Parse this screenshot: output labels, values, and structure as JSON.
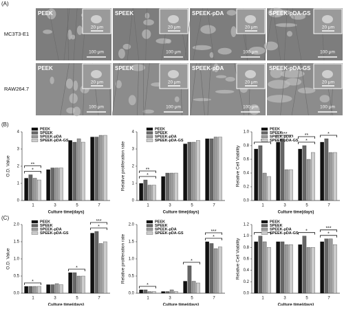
{
  "panels": {
    "a": "(A)",
    "b": "(B)",
    "c": "(C)"
  },
  "sem": {
    "rows": [
      "MC3T3-E1",
      "RAW264.7"
    ],
    "columns": [
      "PEEK",
      "SPEEK",
      "SPEEK-pDA",
      "SPEEK-pDA-GS"
    ],
    "inset_scale": "20 μm",
    "scale": "100 μm"
  },
  "chart_data": [
    {
      "type": "bar",
      "ylabel": "O.D. Value",
      "xlabel": "Culture time(days)",
      "categories": [
        "1",
        "3",
        "5",
        "7"
      ],
      "ylim": [
        0,
        4
      ],
      "yticks": [
        0,
        1,
        2,
        3,
        4
      ],
      "series": [
        {
          "name": "PEEK",
          "color": "#111111",
          "values": [
            1.3,
            1.8,
            3.5,
            3.7
          ]
        },
        {
          "name": "SPEEK",
          "color": "#666666",
          "values": [
            1.5,
            1.9,
            3.4,
            3.7
          ]
        },
        {
          "name": "SPEEK-pDA",
          "color": "#9a9a9a",
          "values": [
            1.3,
            1.9,
            3.6,
            3.8
          ]
        },
        {
          "name": "SPEEK-pDA-GS",
          "color": "#cccccc",
          "values": [
            1.2,
            1.9,
            3.4,
            3.8
          ]
        }
      ],
      "annotations": [
        {
          "text": "*",
          "x": "1"
        },
        {
          "text": "**",
          "x": "1"
        }
      ]
    },
    {
      "type": "bar",
      "ylabel": "Relative proliferation rate",
      "xlabel": "Culture time(days)",
      "categories": [
        "1",
        "3",
        "5",
        "7"
      ],
      "ylim": [
        0,
        4
      ],
      "yticks": [
        0,
        1,
        2,
        3,
        4
      ],
      "series": [
        {
          "name": "PEEK",
          "color": "#111111",
          "values": [
            1.0,
            1.4,
            3.3,
            3.6
          ]
        },
        {
          "name": "SPEEK",
          "color": "#666666",
          "values": [
            1.2,
            1.6,
            3.4,
            3.6
          ]
        },
        {
          "name": "SPEEK-pDA",
          "color": "#9a9a9a",
          "values": [
            0.9,
            1.6,
            3.4,
            3.7
          ]
        },
        {
          "name": "SPEEK-pDA-GS",
          "color": "#cccccc",
          "values": [
            0.9,
            1.6,
            3.5,
            3.7
          ]
        }
      ],
      "annotations": [
        {
          "text": "*",
          "x": "1"
        },
        {
          "text": "**",
          "x": "1"
        }
      ]
    },
    {
      "type": "bar",
      "ylabel": "Relative Cell Viability",
      "xlabel": "Culture time(days)",
      "categories": [
        "1",
        "3",
        "5",
        "7"
      ],
      "ylim": [
        0,
        1
      ],
      "yticks": [
        {
          "value": 0,
          "label": "0.0"
        },
        0.2,
        0.4,
        0.6,
        0.8,
        {
          "value": 1,
          "label": "1.0"
        }
      ],
      "series": [
        {
          "name": "PEEK",
          "color": "#111111",
          "values": [
            0.75,
            0.85,
            0.75,
            0.85
          ]
        },
        {
          "name": "SPEEK",
          "color": "#666666",
          "values": [
            0.8,
            0.9,
            0.8,
            0.9
          ]
        },
        {
          "name": "SPEEK-pDA",
          "color": "#9a9a9a",
          "values": [
            0.4,
            0.45,
            0.6,
            0.7
          ]
        },
        {
          "name": "SPEEK-pDA-GS",
          "color": "#cccccc",
          "values": [
            0.35,
            0.45,
            0.7,
            0.7
          ]
        }
      ],
      "annotations": [
        {
          "text": "**",
          "x": "1"
        },
        {
          "text": "***",
          "x": "3"
        },
        {
          "text": "*",
          "x": "5"
        },
        {
          "text": "**",
          "x": "5"
        },
        {
          "text": "*",
          "x": "7"
        }
      ]
    },
    {
      "type": "bar",
      "ylabel": "O.D. Value",
      "xlabel": "Culture time(days)",
      "categories": [
        "1",
        "3",
        "5",
        "7"
      ],
      "ylim": [
        0,
        2
      ],
      "yticks": [
        {
          "value": 0,
          "label": "0.0"
        },
        0.5,
        {
          "value": 1,
          "label": "1.0"
        },
        1.5,
        {
          "value": 2,
          "label": "2.0"
        }
      ],
      "series": [
        {
          "name": "PEEK",
          "color": "#111111",
          "values": [
            0.2,
            0.25,
            0.6,
            1.75
          ]
        },
        {
          "name": "SPEEK",
          "color": "#666666",
          "values": [
            0.2,
            0.25,
            0.6,
            1.8
          ]
        },
        {
          "name": "SPEEK-pDA",
          "color": "#9a9a9a",
          "values": [
            0.2,
            0.28,
            0.5,
            1.45
          ]
        },
        {
          "name": "SPEEK-pDA-GS",
          "color": "#cccccc",
          "values": [
            0.2,
            0.25,
            0.5,
            1.5
          ]
        }
      ],
      "annotations": [
        {
          "text": "*",
          "x": "1"
        },
        {
          "text": "*",
          "x": "5"
        },
        {
          "text": "*",
          "x": "7"
        },
        {
          "text": "***",
          "x": "7"
        }
      ]
    },
    {
      "type": "bar",
      "ylabel": "Relative proliferation rate",
      "xlabel": "Culture time(days)",
      "categories": [
        "1",
        "3",
        "5",
        "7"
      ],
      "ylim": [
        0,
        2
      ],
      "yticks": [
        {
          "value": 0,
          "label": "0.0"
        },
        0.5,
        {
          "value": 1,
          "label": "1.0"
        },
        1.5,
        {
          "value": 2,
          "label": "2.0"
        }
      ],
      "series": [
        {
          "name": "PEEK",
          "color": "#111111",
          "values": [
            0.1,
            0.05,
            0.35,
            1.5
          ]
        },
        {
          "name": "SPEEK",
          "color": "#666666",
          "values": [
            0.1,
            0.05,
            0.8,
            1.45
          ]
        },
        {
          "name": "SPEEK-pDA",
          "color": "#9a9a9a",
          "values": [
            0.05,
            0.1,
            0.35,
            1.3
          ]
        },
        {
          "name": "SPEEK-pDA-GS",
          "color": "#cccccc",
          "values": [
            0.05,
            0.05,
            0.3,
            1.35
          ]
        }
      ],
      "annotations": [
        {
          "text": "*",
          "x": "1"
        },
        {
          "text": "*",
          "x": "5"
        },
        {
          "text": "*",
          "x": "7"
        },
        {
          "text": "***",
          "x": "7"
        }
      ]
    },
    {
      "type": "bar",
      "ylabel": "Relative Cell Viability",
      "xlabel": "Culture time(days)",
      "categories": [
        "1",
        "3",
        "5",
        "7"
      ],
      "ylim": [
        0,
        1.2
      ],
      "yticks": [
        {
          "value": 0,
          "label": "0.0"
        },
        0.2,
        0.4,
        0.6,
        0.8,
        {
          "value": 1,
          "label": "1.0"
        },
        1.2
      ],
      "series": [
        {
          "name": "PEEK",
          "color": "#111111",
          "values": [
            0.9,
            0.9,
            0.85,
            0.9
          ]
        },
        {
          "name": "SPEEK",
          "color": "#666666",
          "values": [
            1.0,
            0.9,
            1.0,
            0.95
          ]
        },
        {
          "name": "SPEEK-pDA",
          "color": "#9a9a9a",
          "values": [
            0.9,
            0.85,
            0.8,
            0.95
          ]
        },
        {
          "name": "SPEEK-pDA-GS",
          "color": "#cccccc",
          "values": [
            0.8,
            0.85,
            0.8,
            0.85
          ]
        }
      ],
      "annotations": [
        {
          "text": "*",
          "x": "1"
        },
        {
          "text": "*",
          "x": "5"
        },
        {
          "text": "*",
          "x": "7"
        },
        {
          "text": "***",
          "x": "7"
        }
      ]
    }
  ]
}
